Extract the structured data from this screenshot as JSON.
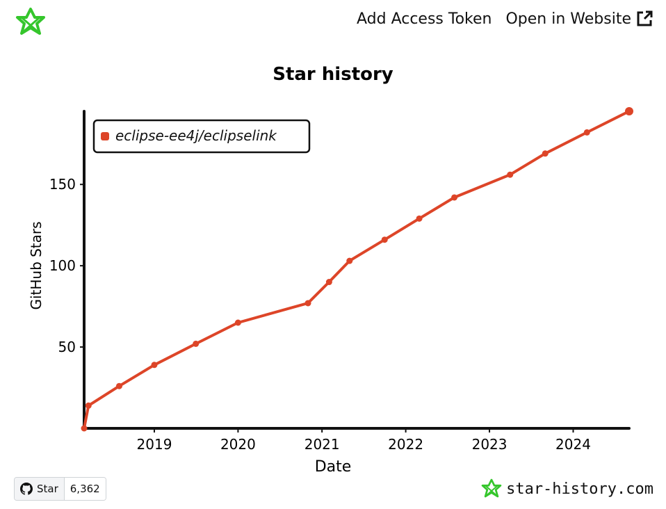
{
  "header": {
    "add_token_label": "Add Access Token",
    "open_website_label": "Open in Website"
  },
  "colors": {
    "accent": "#35c62c",
    "series": "#dd4528"
  },
  "icons": {
    "logo": "star-history-logo-icon",
    "external": "external-link-icon",
    "github": "github-icon",
    "brand": "star-history-logo-icon"
  },
  "footer": {
    "star_label": "Star",
    "star_count": "6,362",
    "brand_text": "star-history.com"
  },
  "chart_data": {
    "type": "line",
    "title": "Star history",
    "xlabel": "Date",
    "ylabel": "GitHub Stars",
    "x_ticks": [
      "2019",
      "2020",
      "2021",
      "2022",
      "2023",
      "2024"
    ],
    "y_ticks": [
      50,
      100,
      150
    ],
    "xlim": [
      "2018-03-01",
      "2024-09-01"
    ],
    "ylim": [
      0,
      195
    ],
    "legend_position": "top-left",
    "grid": false,
    "series": [
      {
        "name": "eclipse-ee4j/eclipselink",
        "color": "#dd4528",
        "points": [
          [
            "2018-03-01",
            0
          ],
          [
            "2018-03-20",
            14
          ],
          [
            "2018-08-01",
            26
          ],
          [
            "2019-01-01",
            39
          ],
          [
            "2019-07-01",
            52
          ],
          [
            "2020-01-01",
            65
          ],
          [
            "2020-11-01",
            77
          ],
          [
            "2021-02-01",
            90
          ],
          [
            "2021-05-01",
            103
          ],
          [
            "2021-10-01",
            116
          ],
          [
            "2022-03-01",
            129
          ],
          [
            "2022-08-01",
            142
          ],
          [
            "2023-04-01",
            156
          ],
          [
            "2023-09-01",
            169
          ],
          [
            "2024-03-01",
            182
          ],
          [
            "2024-09-01",
            195
          ]
        ]
      }
    ]
  }
}
